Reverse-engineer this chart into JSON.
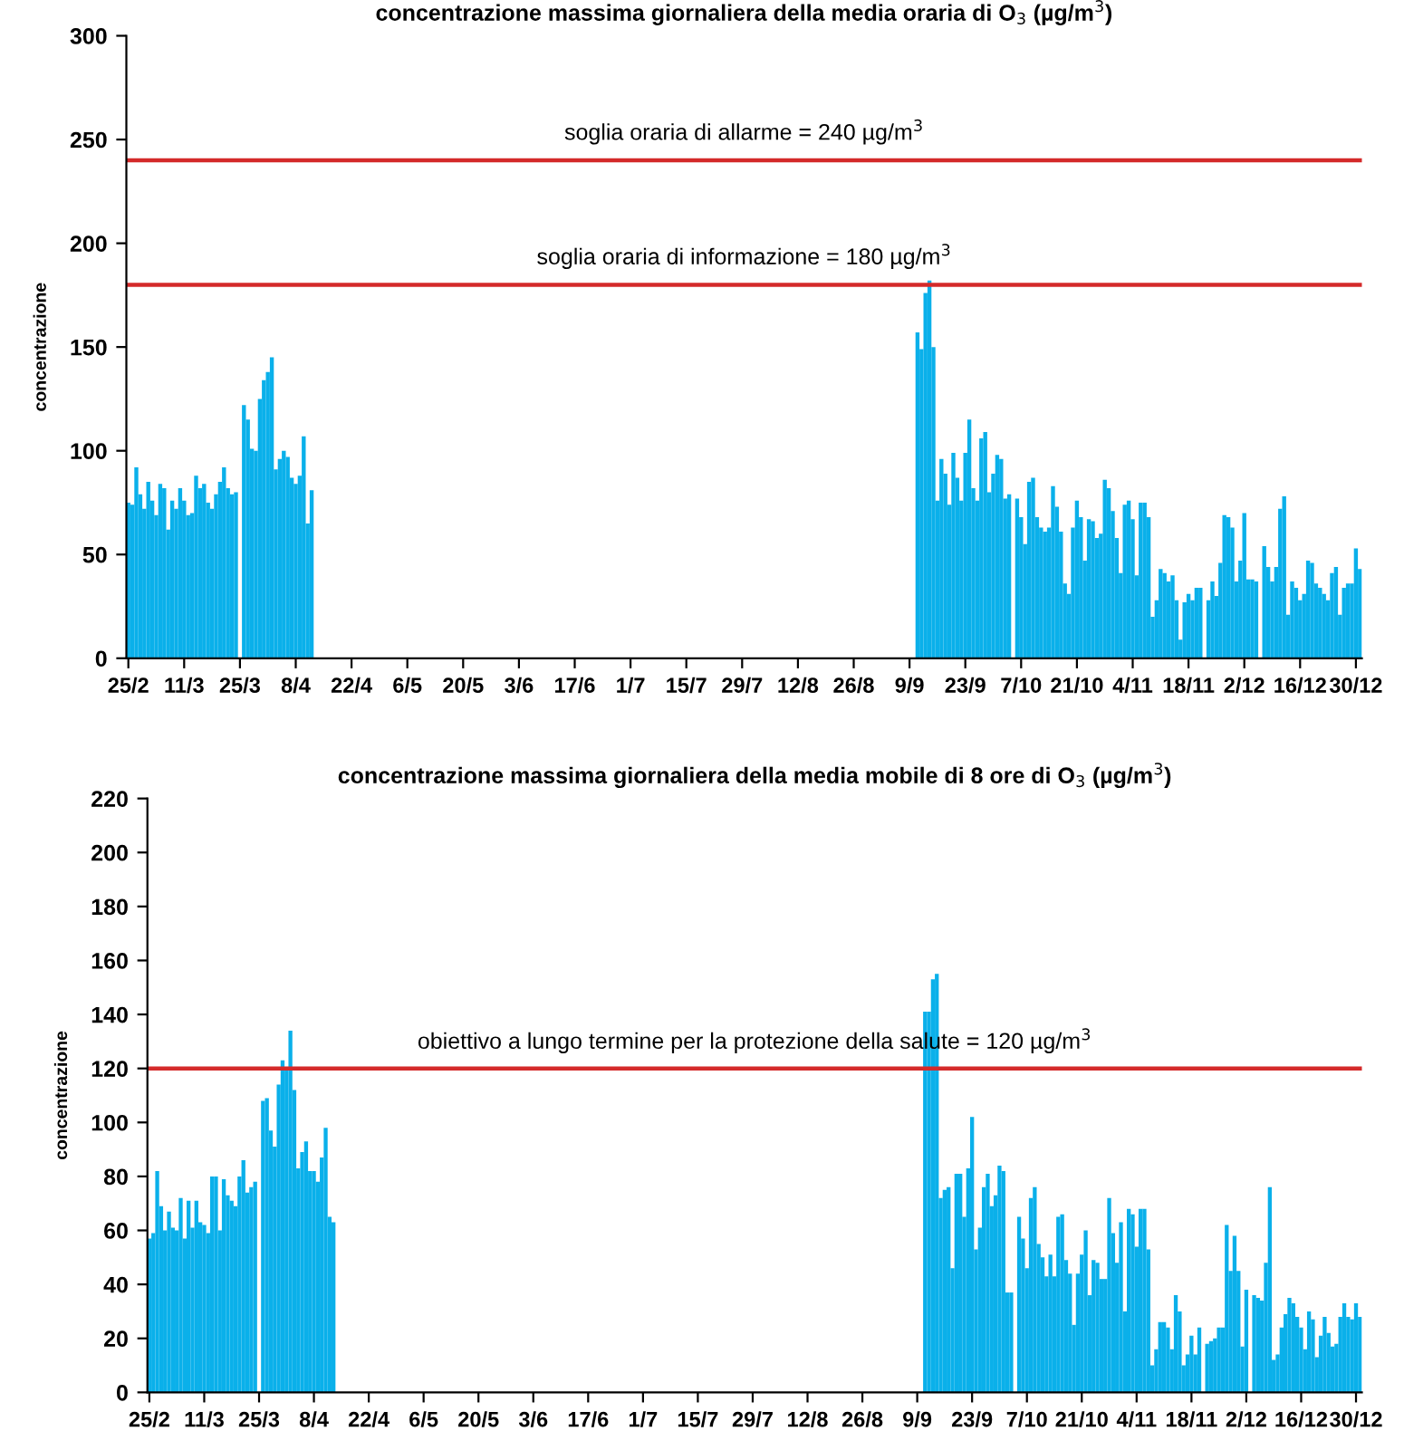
{
  "chart_data": [
    {
      "type": "bar",
      "title": "concentrazione massima giornaliera della media oraria di O$_{3}$ (µg/m$^{3}$)",
      "ylabel": "concentrazione",
      "categories": [
        "25/2",
        null,
        null,
        null,
        null,
        null,
        null,
        null,
        null,
        null,
        null,
        null,
        null,
        null,
        "11/3",
        null,
        null,
        null,
        null,
        null,
        null,
        null,
        null,
        null,
        null,
        null,
        null,
        null,
        "25/3",
        null,
        null,
        null,
        null,
        null,
        null,
        null,
        null,
        null,
        null,
        null,
        null,
        null,
        "8/4",
        null,
        null,
        null,
        null,
        null,
        null,
        null,
        null,
        null,
        null,
        null,
        null,
        null,
        "22/4",
        null,
        null,
        null,
        null,
        null,
        null,
        null,
        null,
        null,
        null,
        null,
        null,
        null,
        "6/5",
        null,
        null,
        null,
        null,
        null,
        null,
        null,
        null,
        null,
        null,
        null,
        null,
        null,
        "20/5",
        null,
        null,
        null,
        null,
        null,
        null,
        null,
        null,
        null,
        null,
        null,
        null,
        null,
        "3/6",
        null,
        null,
        null,
        null,
        null,
        null,
        null,
        null,
        null,
        null,
        null,
        null,
        null,
        "17/6",
        null,
        null,
        null,
        null,
        null,
        null,
        null,
        null,
        null,
        null,
        null,
        null,
        null,
        "1/7",
        null,
        null,
        null,
        null,
        null,
        null,
        null,
        null,
        null,
        null,
        null,
        null,
        null,
        "15/7",
        null,
        null,
        null,
        null,
        null,
        null,
        null,
        null,
        null,
        null,
        null,
        null,
        null,
        "29/7",
        null,
        null,
        null,
        null,
        null,
        null,
        null,
        null,
        null,
        null,
        null,
        null,
        null,
        "12/8",
        null,
        null,
        null,
        null,
        null,
        null,
        null,
        null,
        null,
        null,
        null,
        null,
        null,
        "26/8",
        null,
        null,
        null,
        null,
        null,
        null,
        null,
        null,
        null,
        null,
        null,
        null,
        null,
        "9/9",
        null,
        null,
        null,
        null,
        null,
        null,
        null,
        null,
        null,
        null,
        null,
        null,
        null,
        "23/9",
        null,
        null,
        null,
        null,
        null,
        null,
        null,
        null,
        null,
        null,
        null,
        null,
        null,
        "7/10",
        null,
        null,
        null,
        null,
        null,
        null,
        null,
        null,
        null,
        null,
        null,
        null,
        null,
        "21/10",
        null,
        null,
        null,
        null,
        null,
        null,
        null,
        null,
        null,
        null,
        null,
        null,
        null,
        "4/11",
        null,
        null,
        null,
        null,
        null,
        null,
        null,
        null,
        null,
        null,
        null,
        null,
        null,
        "18/11",
        null,
        null,
        null,
        null,
        null,
        null,
        null,
        null,
        null,
        null,
        null,
        null,
        null,
        "2/12",
        null,
        null,
        null,
        null,
        null,
        null,
        null,
        null,
        null,
        null,
        null,
        null,
        null,
        "16/12",
        null,
        null,
        null,
        null,
        null,
        null,
        null,
        null,
        null,
        null,
        null,
        null,
        null,
        "30/12",
        null
      ],
      "values": [
        75,
        74,
        92,
        79,
        72,
        85,
        76,
        69,
        84,
        82,
        62,
        76,
        72,
        82,
        76,
        69,
        70,
        88,
        82,
        84,
        75,
        72,
        79,
        85,
        92,
        82,
        79,
        80,
        null,
        122,
        115,
        101,
        100,
        125,
        134,
        138,
        145,
        91,
        96,
        100,
        97,
        87,
        84,
        88,
        107,
        65,
        81,
        null,
        null,
        null,
        null,
        null,
        null,
        null,
        null,
        null,
        null,
        null,
        null,
        null,
        null,
        null,
        null,
        null,
        null,
        null,
        null,
        null,
        null,
        null,
        null,
        null,
        null,
        null,
        null,
        null,
        null,
        null,
        null,
        null,
        null,
        null,
        null,
        null,
        null,
        null,
        null,
        null,
        null,
        null,
        null,
        null,
        null,
        null,
        null,
        null,
        null,
        null,
        null,
        null,
        null,
        null,
        null,
        null,
        null,
        null,
        null,
        null,
        null,
        null,
        null,
        null,
        null,
        null,
        null,
        null,
        null,
        null,
        null,
        null,
        null,
        null,
        null,
        null,
        null,
        null,
        null,
        null,
        null,
        null,
        null,
        null,
        null,
        null,
        null,
        null,
        null,
        null,
        null,
        null,
        null,
        null,
        null,
        null,
        null,
        null,
        null,
        null,
        null,
        null,
        null,
        null,
        null,
        null,
        null,
        null,
        null,
        null,
        null,
        null,
        null,
        null,
        null,
        null,
        null,
        null,
        null,
        null,
        null,
        null,
        null,
        null,
        null,
        null,
        null,
        null,
        null,
        null,
        null,
        null,
        null,
        null,
        null,
        null,
        null,
        null,
        null,
        null,
        null,
        null,
        null,
        null,
        null,
        null,
        null,
        null,
        null,
        null,
        157,
        149,
        176,
        182,
        150,
        76,
        96,
        89,
        74,
        99,
        87,
        76,
        99,
        115,
        82,
        76,
        106,
        109,
        80,
        89,
        98,
        96,
        77,
        79,
        null,
        77,
        68,
        55,
        85,
        87,
        68,
        63,
        61,
        63,
        83,
        73,
        61,
        36,
        31,
        63,
        76,
        68,
        47,
        67,
        66,
        58,
        60,
        86,
        82,
        71,
        58,
        41,
        74,
        76,
        67,
        40,
        75,
        75,
        68,
        20,
        28,
        43,
        41,
        37,
        40,
        28,
        9,
        27,
        31,
        28,
        34,
        34,
        null,
        28,
        37,
        30,
        46,
        69,
        68,
        63,
        37,
        47,
        70,
        38,
        38,
        37,
        null,
        54,
        44,
        37,
        44,
        72,
        78,
        21,
        37,
        34,
        28,
        31,
        47,
        46,
        36,
        34,
        31,
        28,
        41,
        44,
        21,
        34,
        36,
        36,
        53,
        43
      ],
      "color": "#0ab0ea",
      "ylim": [
        0,
        300
      ],
      "yticks": [
        0,
        50,
        100,
        150,
        200,
        250,
        300
      ],
      "grid": false,
      "ref_lines": [
        {
          "axis": "y",
          "value": 240,
          "label": "soglia oraria di allarme = 240 µg/m$^{3}$",
          "color": "#d42a2a"
        },
        {
          "axis": "y",
          "value": 180,
          "label": "soglia oraria di informazione = 180 µg/m$^{3}$",
          "color": "#d42a2a"
        }
      ]
    },
    {
      "type": "bar",
      "title": "concentrazione massima giornaliera della media mobile di 8 ore di O$_{3}$ (µg/m$^{3}$)",
      "ylabel": "concentrazione",
      "categories": [
        "25/2",
        null,
        null,
        null,
        null,
        null,
        null,
        null,
        null,
        null,
        null,
        null,
        null,
        null,
        "11/3",
        null,
        null,
        null,
        null,
        null,
        null,
        null,
        null,
        null,
        null,
        null,
        null,
        null,
        "25/3",
        null,
        null,
        null,
        null,
        null,
        null,
        null,
        null,
        null,
        null,
        null,
        null,
        null,
        "8/4",
        null,
        null,
        null,
        null,
        null,
        null,
        null,
        null,
        null,
        null,
        null,
        null,
        null,
        "22/4",
        null,
        null,
        null,
        null,
        null,
        null,
        null,
        null,
        null,
        null,
        null,
        null,
        null,
        "6/5",
        null,
        null,
        null,
        null,
        null,
        null,
        null,
        null,
        null,
        null,
        null,
        null,
        null,
        "20/5",
        null,
        null,
        null,
        null,
        null,
        null,
        null,
        null,
        null,
        null,
        null,
        null,
        null,
        "3/6",
        null,
        null,
        null,
        null,
        null,
        null,
        null,
        null,
        null,
        null,
        null,
        null,
        null,
        "17/6",
        null,
        null,
        null,
        null,
        null,
        null,
        null,
        null,
        null,
        null,
        null,
        null,
        null,
        "1/7",
        null,
        null,
        null,
        null,
        null,
        null,
        null,
        null,
        null,
        null,
        null,
        null,
        null,
        "15/7",
        null,
        null,
        null,
        null,
        null,
        null,
        null,
        null,
        null,
        null,
        null,
        null,
        null,
        "29/7",
        null,
        null,
        null,
        null,
        null,
        null,
        null,
        null,
        null,
        null,
        null,
        null,
        null,
        "12/8",
        null,
        null,
        null,
        null,
        null,
        null,
        null,
        null,
        null,
        null,
        null,
        null,
        null,
        "26/8",
        null,
        null,
        null,
        null,
        null,
        null,
        null,
        null,
        null,
        null,
        null,
        null,
        null,
        "9/9",
        null,
        null,
        null,
        null,
        null,
        null,
        null,
        null,
        null,
        null,
        null,
        null,
        null,
        "23/9",
        null,
        null,
        null,
        null,
        null,
        null,
        null,
        null,
        null,
        null,
        null,
        null,
        null,
        "7/10",
        null,
        null,
        null,
        null,
        null,
        null,
        null,
        null,
        null,
        null,
        null,
        null,
        null,
        "21/10",
        null,
        null,
        null,
        null,
        null,
        null,
        null,
        null,
        null,
        null,
        null,
        null,
        null,
        "4/11",
        null,
        null,
        null,
        null,
        null,
        null,
        null,
        null,
        null,
        null,
        null,
        null,
        null,
        "18/11",
        null,
        null,
        null,
        null,
        null,
        null,
        null,
        null,
        null,
        null,
        null,
        null,
        null,
        "2/12",
        null,
        null,
        null,
        null,
        null,
        null,
        null,
        null,
        null,
        null,
        null,
        null,
        null,
        "16/12",
        null,
        null,
        null,
        null,
        null,
        null,
        null,
        null,
        null,
        null,
        null,
        null,
        null,
        "30/12",
        null
      ],
      "values": [
        57,
        59,
        82,
        69,
        60,
        67,
        61,
        60,
        72,
        57,
        71,
        61,
        71,
        63,
        62,
        59,
        80,
        80,
        60,
        79,
        73,
        71,
        69,
        80,
        86,
        74,
        76,
        78,
        null,
        108,
        109,
        97,
        91,
        114,
        123,
        120,
        134,
        112,
        83,
        89,
        93,
        82,
        82,
        78,
        87,
        98,
        65,
        63,
        null,
        null,
        null,
        null,
        null,
        null,
        null,
        null,
        null,
        null,
        null,
        null,
        null,
        null,
        null,
        null,
        null,
        null,
        null,
        null,
        null,
        null,
        null,
        null,
        null,
        null,
        null,
        null,
        null,
        null,
        null,
        null,
        null,
        null,
        null,
        null,
        null,
        null,
        null,
        null,
        null,
        null,
        null,
        null,
        null,
        null,
        null,
        null,
        null,
        null,
        null,
        null,
        null,
        null,
        null,
        null,
        null,
        null,
        null,
        null,
        null,
        null,
        null,
        null,
        null,
        null,
        null,
        null,
        null,
        null,
        null,
        null,
        null,
        null,
        null,
        null,
        null,
        null,
        null,
        null,
        null,
        null,
        null,
        null,
        null,
        null,
        null,
        null,
        null,
        null,
        null,
        null,
        null,
        null,
        null,
        null,
        null,
        null,
        null,
        null,
        null,
        null,
        null,
        null,
        null,
        null,
        null,
        null,
        null,
        null,
        null,
        null,
        null,
        null,
        null,
        null,
        null,
        null,
        null,
        null,
        null,
        null,
        null,
        null,
        null,
        null,
        null,
        null,
        null,
        null,
        null,
        null,
        null,
        null,
        null,
        null,
        null,
        null,
        null,
        null,
        null,
        null,
        null,
        null,
        null,
        null,
        null,
        null,
        null,
        null,
        141,
        141,
        153,
        155,
        72,
        75,
        76,
        46,
        81,
        81,
        65,
        83,
        102,
        53,
        61,
        76,
        81,
        69,
        73,
        84,
        82,
        37,
        37,
        null,
        65,
        57,
        46,
        72,
        76,
        55,
        50,
        43,
        51,
        43,
        65,
        66,
        49,
        44,
        25,
        44,
        51,
        60,
        36,
        49,
        48,
        42,
        42,
        72,
        59,
        48,
        63,
        30,
        68,
        66,
        54,
        68,
        68,
        53,
        10,
        16,
        26,
        26,
        24,
        16,
        36,
        30,
        10,
        14,
        21,
        14,
        24,
        null,
        18,
        19,
        20,
        24,
        24,
        62,
        45,
        58,
        45,
        17,
        38,
        null,
        36,
        35,
        34,
        48,
        76,
        12,
        14,
        24,
        29,
        35,
        33,
        28,
        24,
        16,
        30,
        27,
        13,
        21,
        28,
        22,
        17,
        18,
        28,
        33,
        28,
        27,
        33,
        28
      ],
      "color": "#0ab0ea",
      "ylim": [
        0,
        220
      ],
      "yticks": [
        0,
        20,
        40,
        60,
        80,
        100,
        120,
        140,
        160,
        180,
        200,
        220
      ],
      "grid": false,
      "ref_lines": [
        {
          "axis": "y",
          "value": 120,
          "label": "obiettivo a lungo termine per la protezione della salute = 120 µg/m$^{3}$",
          "color": "#d42a2a"
        }
      ]
    }
  ]
}
